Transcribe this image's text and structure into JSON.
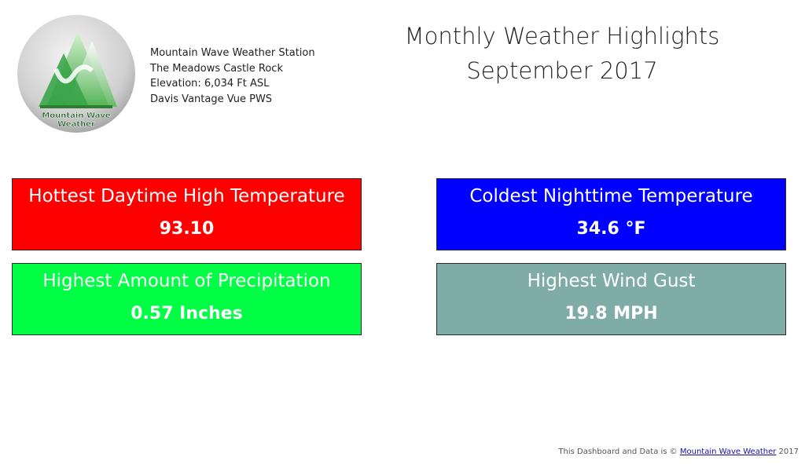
{
  "station": {
    "lines": [
      "Mountain Wave Weather Station",
      "The Meadows Castle Rock",
      "Elevation: 6,034 Ft ASL",
      "Davis Vantage Vue PWS"
    ],
    "logo_text": [
      "Mountain Wave",
      "Weather"
    ]
  },
  "header": {
    "title_line1": "Monthly Weather Highlights",
    "title_line2": "September 2017"
  },
  "cards": [
    {
      "label": "Hottest Daytime High Temperature",
      "value": "93.10",
      "color": "#ff0000"
    },
    {
      "label": "Coldest Nighttime Temperature",
      "value": "34.6 °F",
      "color": "#0000ff"
    },
    {
      "label": "Highest Amount of Precipitation",
      "value": "0.57 Inches",
      "color": "#00ff44"
    },
    {
      "label": "Highest Wind Gust",
      "value": "19.8 MPH",
      "color": "#80aca7"
    }
  ],
  "footer": {
    "prefix": "This Dashboard and Data is © ",
    "link_text": "Mountain Wave Weather",
    "suffix": " 2017"
  }
}
